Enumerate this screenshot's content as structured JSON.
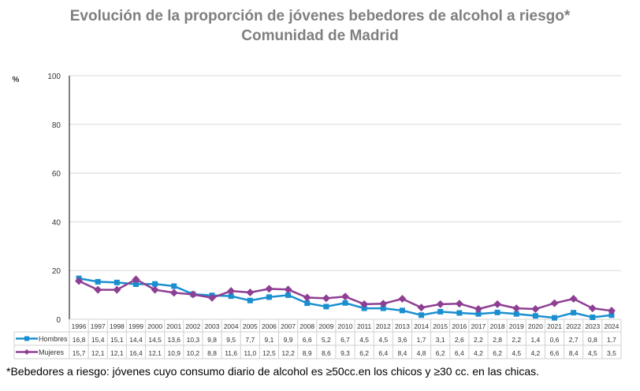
{
  "chart_data": {
    "type": "line",
    "title": "Evolución de la proporción de jóvenes bebedores de alcohol a riesgo*",
    "subtitle": "Comunidad de Madrid",
    "ylabel": "%",
    "ylim": [
      0,
      100
    ],
    "yticks": [
      "0",
      "20",
      "40",
      "60",
      "80",
      "100"
    ],
    "grid": true,
    "legend": "data-table-bottom",
    "categories": [
      "1996",
      "1997",
      "1998",
      "1999",
      "2000",
      "2001",
      "2002",
      "2003",
      "2004",
      "2005",
      "2006",
      "2007",
      "2008",
      "2009",
      "2010",
      "2011",
      "2012",
      "2013",
      "2014",
      "2015",
      "2016",
      "2017",
      "2018",
      "2019",
      "2020",
      "2021",
      "2022",
      "2023",
      "2024"
    ],
    "series": [
      {
        "name": "Hombres",
        "color": "#1a8fd0",
        "marker": "square",
        "values": [
          16.8,
          15.4,
          15.1,
          14.4,
          14.5,
          13.6,
          10.3,
          9.8,
          9.5,
          7.7,
          9.1,
          9.9,
          6.6,
          5.2,
          6.7,
          4.5,
          4.5,
          3.6,
          1.7,
          3.1,
          2.6,
          2.2,
          2.8,
          2.2,
          1.4,
          0.6,
          2.7,
          0.8,
          1.7
        ],
        "labels": [
          "16,8",
          "15,4",
          "15,1",
          "14,4",
          "14,5",
          "13,6",
          "10,3",
          "9,8",
          "9,5",
          "7,7",
          "9,1",
          "9,9",
          "6,6",
          "5,2",
          "6,7",
          "4,5",
          "4,5",
          "3,6",
          "1,7",
          "3,1",
          "2,6",
          "2,2",
          "2,8",
          "2,2",
          "1,4",
          "0,6",
          "2,7",
          "0,8",
          "1,7"
        ]
      },
      {
        "name": "Mujeres",
        "color": "#8e3f93",
        "marker": "diamond",
        "values": [
          15.7,
          12.1,
          12.1,
          16.4,
          12.1,
          10.9,
          10.2,
          8.8,
          11.6,
          11.0,
          12.5,
          12.2,
          8.9,
          8.6,
          9.3,
          6.2,
          6.4,
          8.4,
          4.8,
          6.2,
          6.4,
          4.2,
          6.2,
          4.5,
          4.2,
          6.6,
          8.4,
          4.5,
          3.5
        ],
        "labels": [
          "15,7",
          "12,1",
          "12,1",
          "16,4",
          "12,1",
          "10,9",
          "10,2",
          "8,8",
          "11,6",
          "11,0",
          "12,5",
          "12,2",
          "8,9",
          "8,6",
          "9,3",
          "6,2",
          "6,4",
          "8,4",
          "4,8",
          "6,2",
          "6,4",
          "4,2",
          "6,2",
          "4,5",
          "4,2",
          "6,6",
          "8,4",
          "4,5",
          "3,5"
        ]
      }
    ]
  },
  "footnote": "*Bebedores a riesgo: jóvenes cuyo consumo diario de alcohol es ≥50cc.en los chicos y ≥30 cc. en las chicas."
}
